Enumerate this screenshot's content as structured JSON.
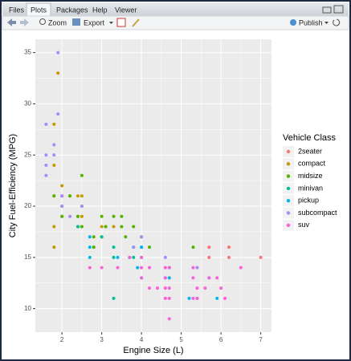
{
  "tabs": [
    "Files",
    "Plots",
    "Packages",
    "Help",
    "Viewer"
  ],
  "toolbar": {
    "zoom": "Zoom",
    "export": "Export",
    "publish": "Publish"
  },
  "chart_data": {
    "type": "scatter",
    "x_label": "Engine Size (L)",
    "y_label": "City Fuel-Efficiency (MPG)",
    "legend_title": "Vehicle Class",
    "xlim": [
      1.33,
      7.27
    ],
    "xticks": [
      2,
      3,
      4,
      5,
      6,
      7
    ],
    "ylim": [
      7.7,
      36.3
    ],
    "yticks": [
      10,
      15,
      20,
      25,
      30,
      35
    ],
    "grid": true,
    "legend": "right",
    "series": [
      {
        "name": "2seater",
        "color": "#F8766D",
        "x": [
          5.7,
          5.7,
          6.2,
          6.2,
          7.0
        ],
        "values": [
          16,
          15,
          16,
          15,
          15
        ]
      },
      {
        "name": "compact",
        "color": "#C49A00",
        "x": [
          1.8,
          1.8,
          2.0,
          2.0,
          2.8,
          3.1,
          1.8,
          2.0,
          2.4,
          2.4,
          2.5,
          2.5,
          2.2,
          3.0,
          3.3,
          1.8,
          1.8,
          1.9,
          2.0,
          2.5
        ],
        "values": [
          18,
          21,
          20,
          21,
          16,
          18,
          16,
          19,
          21,
          19,
          21,
          19,
          21,
          18,
          18,
          24,
          28,
          33,
          22,
          20
        ]
      },
      {
        "name": "midsize",
        "color": "#53B400",
        "x": [
          2.4,
          2.5,
          3.1,
          3.6,
          3.8,
          2.5,
          3.0,
          3.5,
          3.3,
          1.8,
          2.0,
          2.4,
          2.8,
          5.3,
          2.2,
          3.0,
          4.0,
          4.2,
          3.5,
          2.8
        ],
        "values": [
          18,
          18,
          18,
          17,
          18,
          23,
          19,
          19,
          19,
          21,
          19,
          19,
          16,
          16,
          21,
          17,
          17,
          16,
          18,
          17
        ]
      },
      {
        "name": "minivan",
        "color": "#00C094",
        "x": [
          2.4,
          3.0,
          3.3,
          3.3,
          3.8,
          3.8,
          4.0,
          3.3
        ],
        "values": [
          18,
          17,
          16,
          15,
          15,
          16,
          16,
          11
        ]
      },
      {
        "name": "pickup",
        "color": "#00B6EB",
        "x": [
          2.7,
          2.7,
          2.7,
          3.4,
          4.0,
          4.7,
          4.7,
          5.2,
          5.7,
          5.9,
          3.9,
          4.0,
          3.7,
          4.6,
          5.4,
          4.0
        ],
        "values": [
          15,
          17,
          16,
          15,
          15,
          14,
          13,
          11,
          13,
          11,
          14,
          16,
          15,
          13,
          11,
          13
        ]
      },
      {
        "name": "subcompact",
        "color": "#A58AFF",
        "x": [
          1.6,
          1.6,
          1.6,
          1.6,
          1.8,
          1.8,
          1.9,
          1.9,
          2.0,
          2.0,
          2.5,
          2.2,
          4.6,
          5.4,
          4.0,
          3.8
        ],
        "values": [
          28,
          24,
          25,
          23,
          26,
          25,
          35,
          29,
          20,
          21,
          20,
          19,
          15,
          14,
          17,
          16
        ]
      },
      {
        "name": "suv",
        "color": "#FB61D7",
        "x": [
          4.2,
          4.4,
          4.6,
          4.6,
          5.4,
          5.3,
          5.3,
          5.7,
          6.5,
          6.1,
          5.3,
          4.7,
          4.7,
          4.0,
          4.0,
          3.7,
          4.2,
          4.6,
          5.4,
          4.0,
          4.7,
          5.6,
          5.9,
          6.0,
          2.7,
          3.4,
          4.7,
          4.6,
          3.0
        ],
        "values": [
          14,
          12,
          13,
          14,
          11,
          14,
          13,
          13,
          14,
          11,
          11,
          9,
          12,
          15,
          14,
          15,
          12,
          12,
          12,
          13,
          14,
          12,
          13,
          12,
          14,
          14,
          11,
          11,
          14
        ]
      }
    ]
  }
}
